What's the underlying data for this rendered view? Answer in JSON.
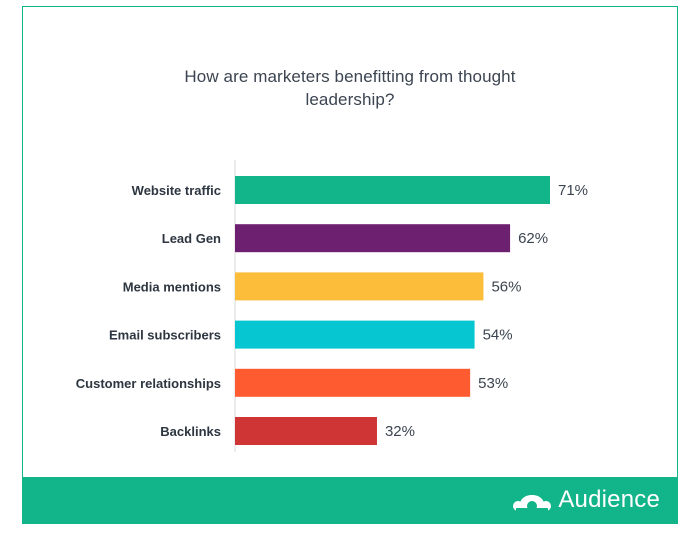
{
  "chart_data": {
    "type": "bar",
    "orientation": "horizontal",
    "title_lines": [
      "How are marketers benefitting from thought",
      "leadership?"
    ],
    "categories": [
      "Website traffic",
      "Lead Gen",
      "Media mentions",
      "Email subscribers",
      "Customer relationships",
      "Backlinks"
    ],
    "values": [
      71,
      62,
      56,
      54,
      53,
      32
    ],
    "value_labels": [
      "71%",
      "62%",
      "56%",
      "54%",
      "53%",
      "32%"
    ],
    "colors": [
      "#12b48a",
      "#6e2070",
      "#fbbd3a",
      "#06c6d2",
      "#ff5b30",
      "#d03535"
    ],
    "unit": "%",
    "xlim": [
      0,
      100
    ],
    "grid": false,
    "legend": false
  },
  "footer": {
    "logo_icon": "surveymonkey-icon",
    "brand": "Audience",
    "background": "#12b48a"
  }
}
